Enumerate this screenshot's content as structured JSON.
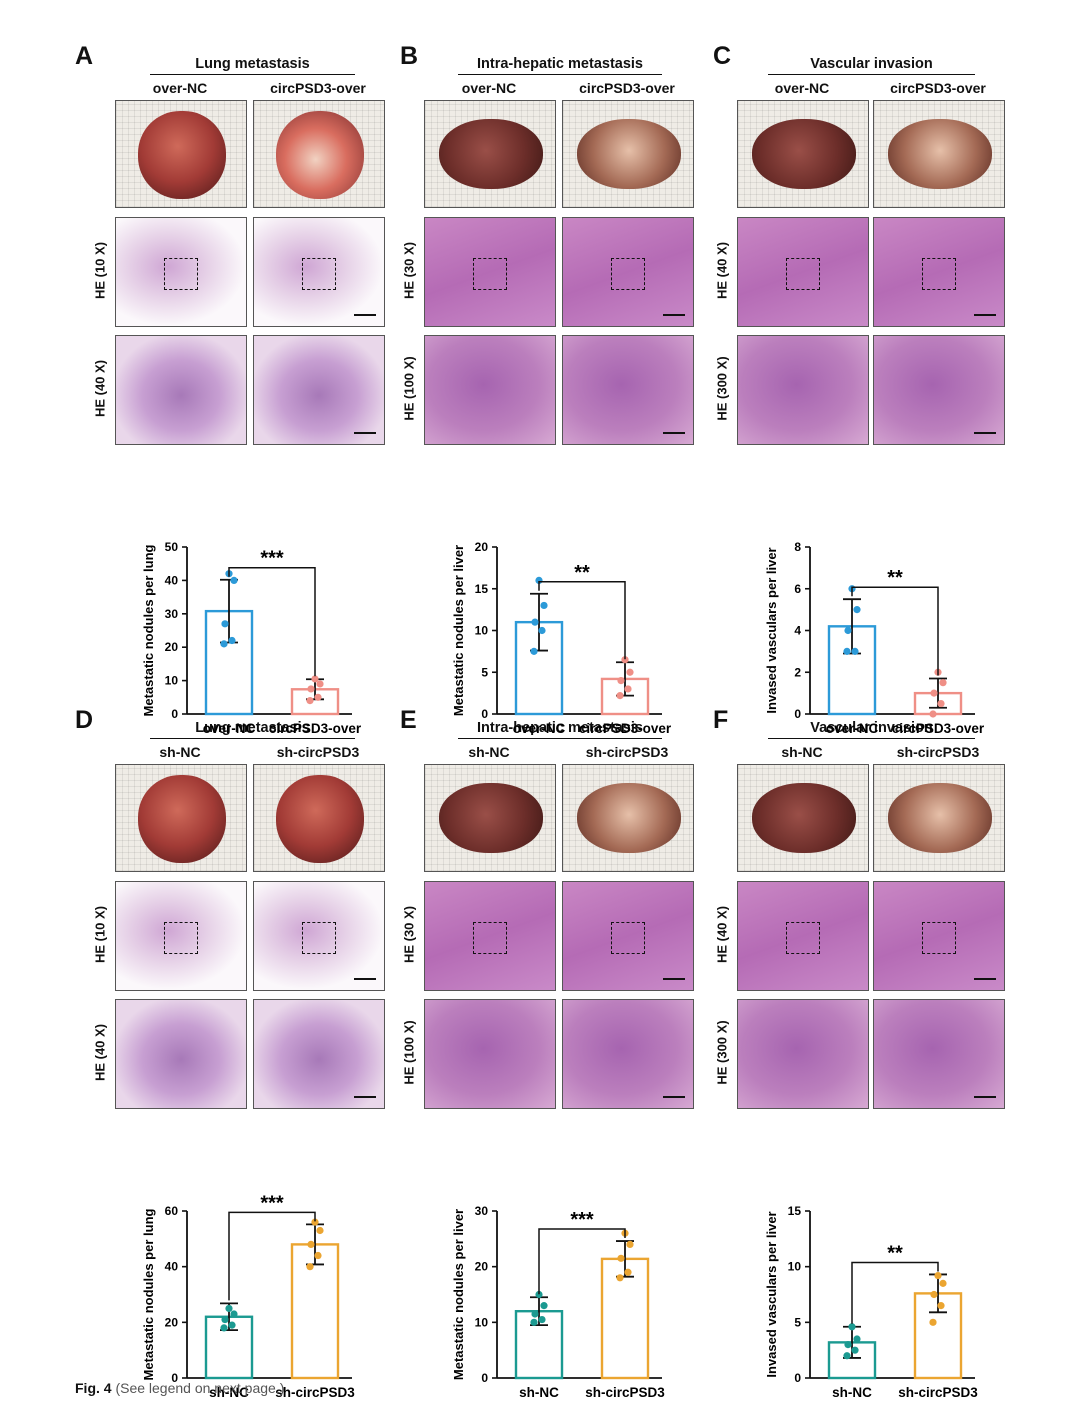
{
  "caption": {
    "fig": "Fig. 4",
    "text": "(See legend on next page.)"
  },
  "panels": [
    {
      "letter": "A",
      "title": "Lung metastasis",
      "groups": [
        "over-NC",
        "circPSD3-over"
      ],
      "row_labels": [
        "HE (10 X)",
        "HE (40 X)"
      ],
      "organ": "lung"
    },
    {
      "letter": "B",
      "title": "Intra-hepatic metastasis",
      "groups": [
        "over-NC",
        "circPSD3-over"
      ],
      "row_labels": [
        "HE (30 X)",
        "HE (100 X)"
      ],
      "organ": "liver"
    },
    {
      "letter": "C",
      "title": "Vascular invasion",
      "groups": [
        "over-NC",
        "circPSD3-over"
      ],
      "row_labels": [
        "HE (40 X)",
        "HE (300 X)"
      ],
      "organ": "liver"
    },
    {
      "letter": "D",
      "title": "Lung metastasis",
      "groups": [
        "sh-NC",
        "sh-circPSD3"
      ],
      "row_labels": [
        "HE (10 X)",
        "HE (40 X)"
      ],
      "organ": "lung"
    },
    {
      "letter": "E",
      "title": "Intra-hepatic metastasis",
      "groups": [
        "sh-NC",
        "sh-circPSD3"
      ],
      "row_labels": [
        "HE (30 X)",
        "HE (100 X)"
      ],
      "organ": "liver"
    },
    {
      "letter": "F",
      "title": "Vascular invasion",
      "groups": [
        "sh-NC",
        "sh-circPSD3"
      ],
      "row_labels": [
        "HE (40 X)",
        "HE (300 X)"
      ],
      "organ": "liver"
    }
  ],
  "chart_data": [
    {
      "type": "bar",
      "panel": "A",
      "categories": [
        "over-NC",
        "circPSD3-over"
      ],
      "values": [
        30.8,
        7.4
      ],
      "errors": [
        9.4,
        3.0
      ],
      "points": [
        [
          42,
          40,
          27,
          22,
          21
        ],
        [
          10.5,
          9,
          7.5,
          5,
          4
        ]
      ],
      "ylabel": "Metastatic nodules per lung",
      "ylim": [
        0,
        50
      ],
      "yticks": [
        0,
        10,
        20,
        30,
        40,
        50
      ],
      "significance": "***",
      "colors": [
        "#2c9ad8",
        "#ef8f86"
      ]
    },
    {
      "type": "bar",
      "panel": "B",
      "categories": [
        "over-NC",
        "circPSD3-over"
      ],
      "values": [
        11,
        4.2
      ],
      "errors": [
        3.4,
        2.0
      ],
      "points": [
        [
          16,
          13,
          11,
          10,
          7.5
        ],
        [
          6.5,
          5,
          4,
          3,
          2.2
        ]
      ],
      "ylabel": "Metastatic nodules per liver",
      "ylim": [
        0,
        20
      ],
      "yticks": [
        0,
        5,
        10,
        15,
        20
      ],
      "significance": "**",
      "colors": [
        "#2c9ad8",
        "#ef8f86"
      ]
    },
    {
      "type": "bar",
      "panel": "C",
      "categories": [
        "over-NC",
        "circPSD3-over"
      ],
      "values": [
        4.2,
        1.0
      ],
      "errors": [
        1.3,
        0.7
      ],
      "points": [
        [
          6,
          5,
          4,
          3,
          3
        ],
        [
          2,
          1.5,
          1,
          0.5,
          0
        ]
      ],
      "ylabel": "Invased vasculars per liver",
      "ylim": [
        0,
        8
      ],
      "yticks": [
        0,
        2,
        4,
        6,
        8
      ],
      "significance": "**",
      "colors": [
        "#2c9ad8",
        "#ef8f86"
      ]
    },
    {
      "type": "bar",
      "panel": "D",
      "categories": [
        "sh-NC",
        "sh-circPSD3"
      ],
      "values": [
        22,
        48
      ],
      "errors": [
        4.8,
        7.2
      ],
      "points": [
        [
          25,
          23,
          21,
          19,
          18
        ],
        [
          56,
          53,
          48,
          44,
          40
        ]
      ],
      "ylabel": "Metastatic nodules per lung",
      "ylim": [
        0,
        60
      ],
      "yticks": [
        0,
        20,
        40,
        60
      ],
      "significance": "***",
      "colors": [
        "#1b9a91",
        "#eba531"
      ]
    },
    {
      "type": "bar",
      "panel": "E",
      "categories": [
        "sh-NC",
        "sh-circPSD3"
      ],
      "values": [
        12,
        21.4
      ],
      "errors": [
        2.5,
        3.2
      ],
      "points": [
        [
          15,
          13,
          11.5,
          10.5,
          10
        ],
        [
          26,
          24,
          21.5,
          19,
          18
        ]
      ],
      "ylabel": "Metastatic nodules per liver",
      "ylim": [
        0,
        30
      ],
      "yticks": [
        0,
        10,
        20,
        30
      ],
      "significance": "***",
      "colors": [
        "#1b9a91",
        "#eba531"
      ]
    },
    {
      "type": "bar",
      "panel": "F",
      "categories": [
        "sh-NC",
        "sh-circPSD3"
      ],
      "values": [
        3.2,
        7.6
      ],
      "errors": [
        1.4,
        1.7
      ],
      "points": [
        [
          4.6,
          3.5,
          3,
          2.5,
          2
        ],
        [
          9.2,
          8.5,
          7.5,
          6.5,
          5
        ]
      ],
      "ylabel": "Invased vasculars per liver",
      "ylim": [
        0,
        15
      ],
      "yticks": [
        0,
        5,
        10,
        15
      ],
      "significance": "**",
      "colors": [
        "#1b9a91",
        "#eba531"
      ]
    }
  ]
}
